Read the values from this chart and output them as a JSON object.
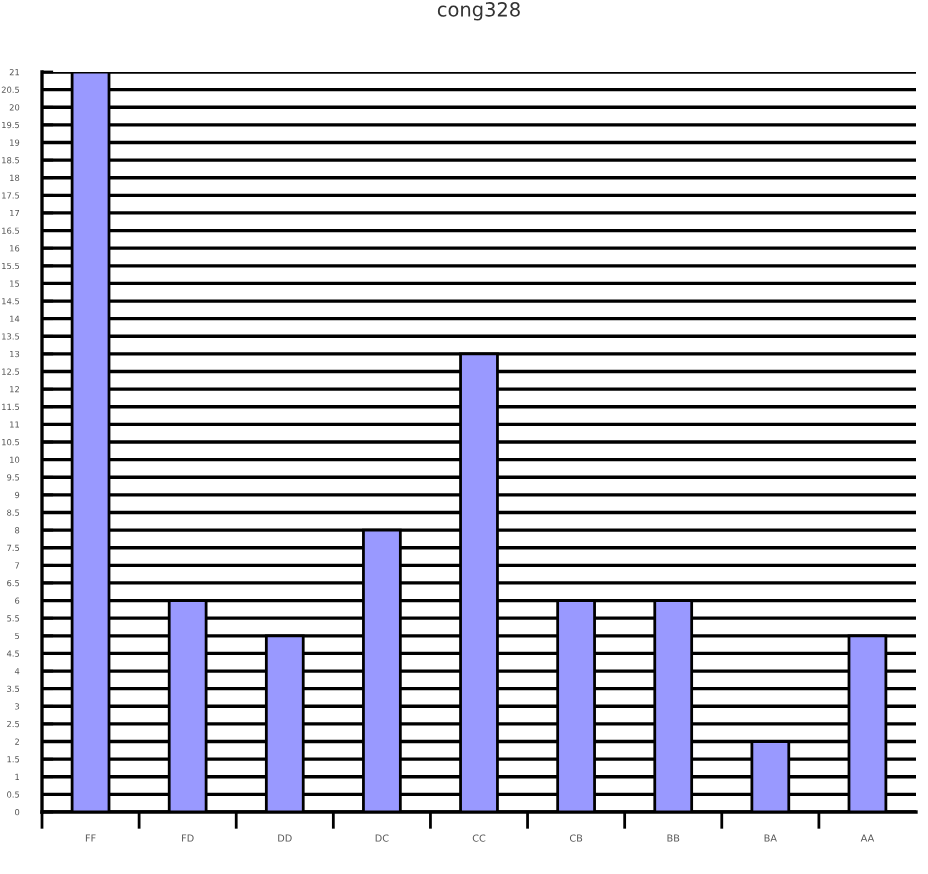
{
  "chart_data": {
    "type": "bar",
    "title": "cong328",
    "categories": [
      "FF",
      "FD",
      "DD",
      "DC",
      "CC",
      "CB",
      "BB",
      "BA",
      "AA"
    ],
    "values": [
      21,
      6,
      5,
      8,
      13,
      6,
      6,
      2,
      5
    ],
    "color": "#9999ff",
    "ylim": [
      0,
      21
    ],
    "yticks": [
      0,
      0.5,
      1,
      1.5,
      2,
      2.5,
      3,
      3.5,
      4,
      4.5,
      5,
      5.5,
      6,
      6.5,
      7,
      7.5,
      8,
      8.5,
      9,
      9.5,
      10,
      10.5,
      11,
      11.5,
      12,
      12.5,
      13,
      13.5,
      14,
      14.5,
      15,
      15.5,
      16,
      16.5,
      17,
      17.5,
      18,
      18.5,
      19,
      19.5,
      20,
      20.5,
      21
    ],
    "grid": "y"
  }
}
